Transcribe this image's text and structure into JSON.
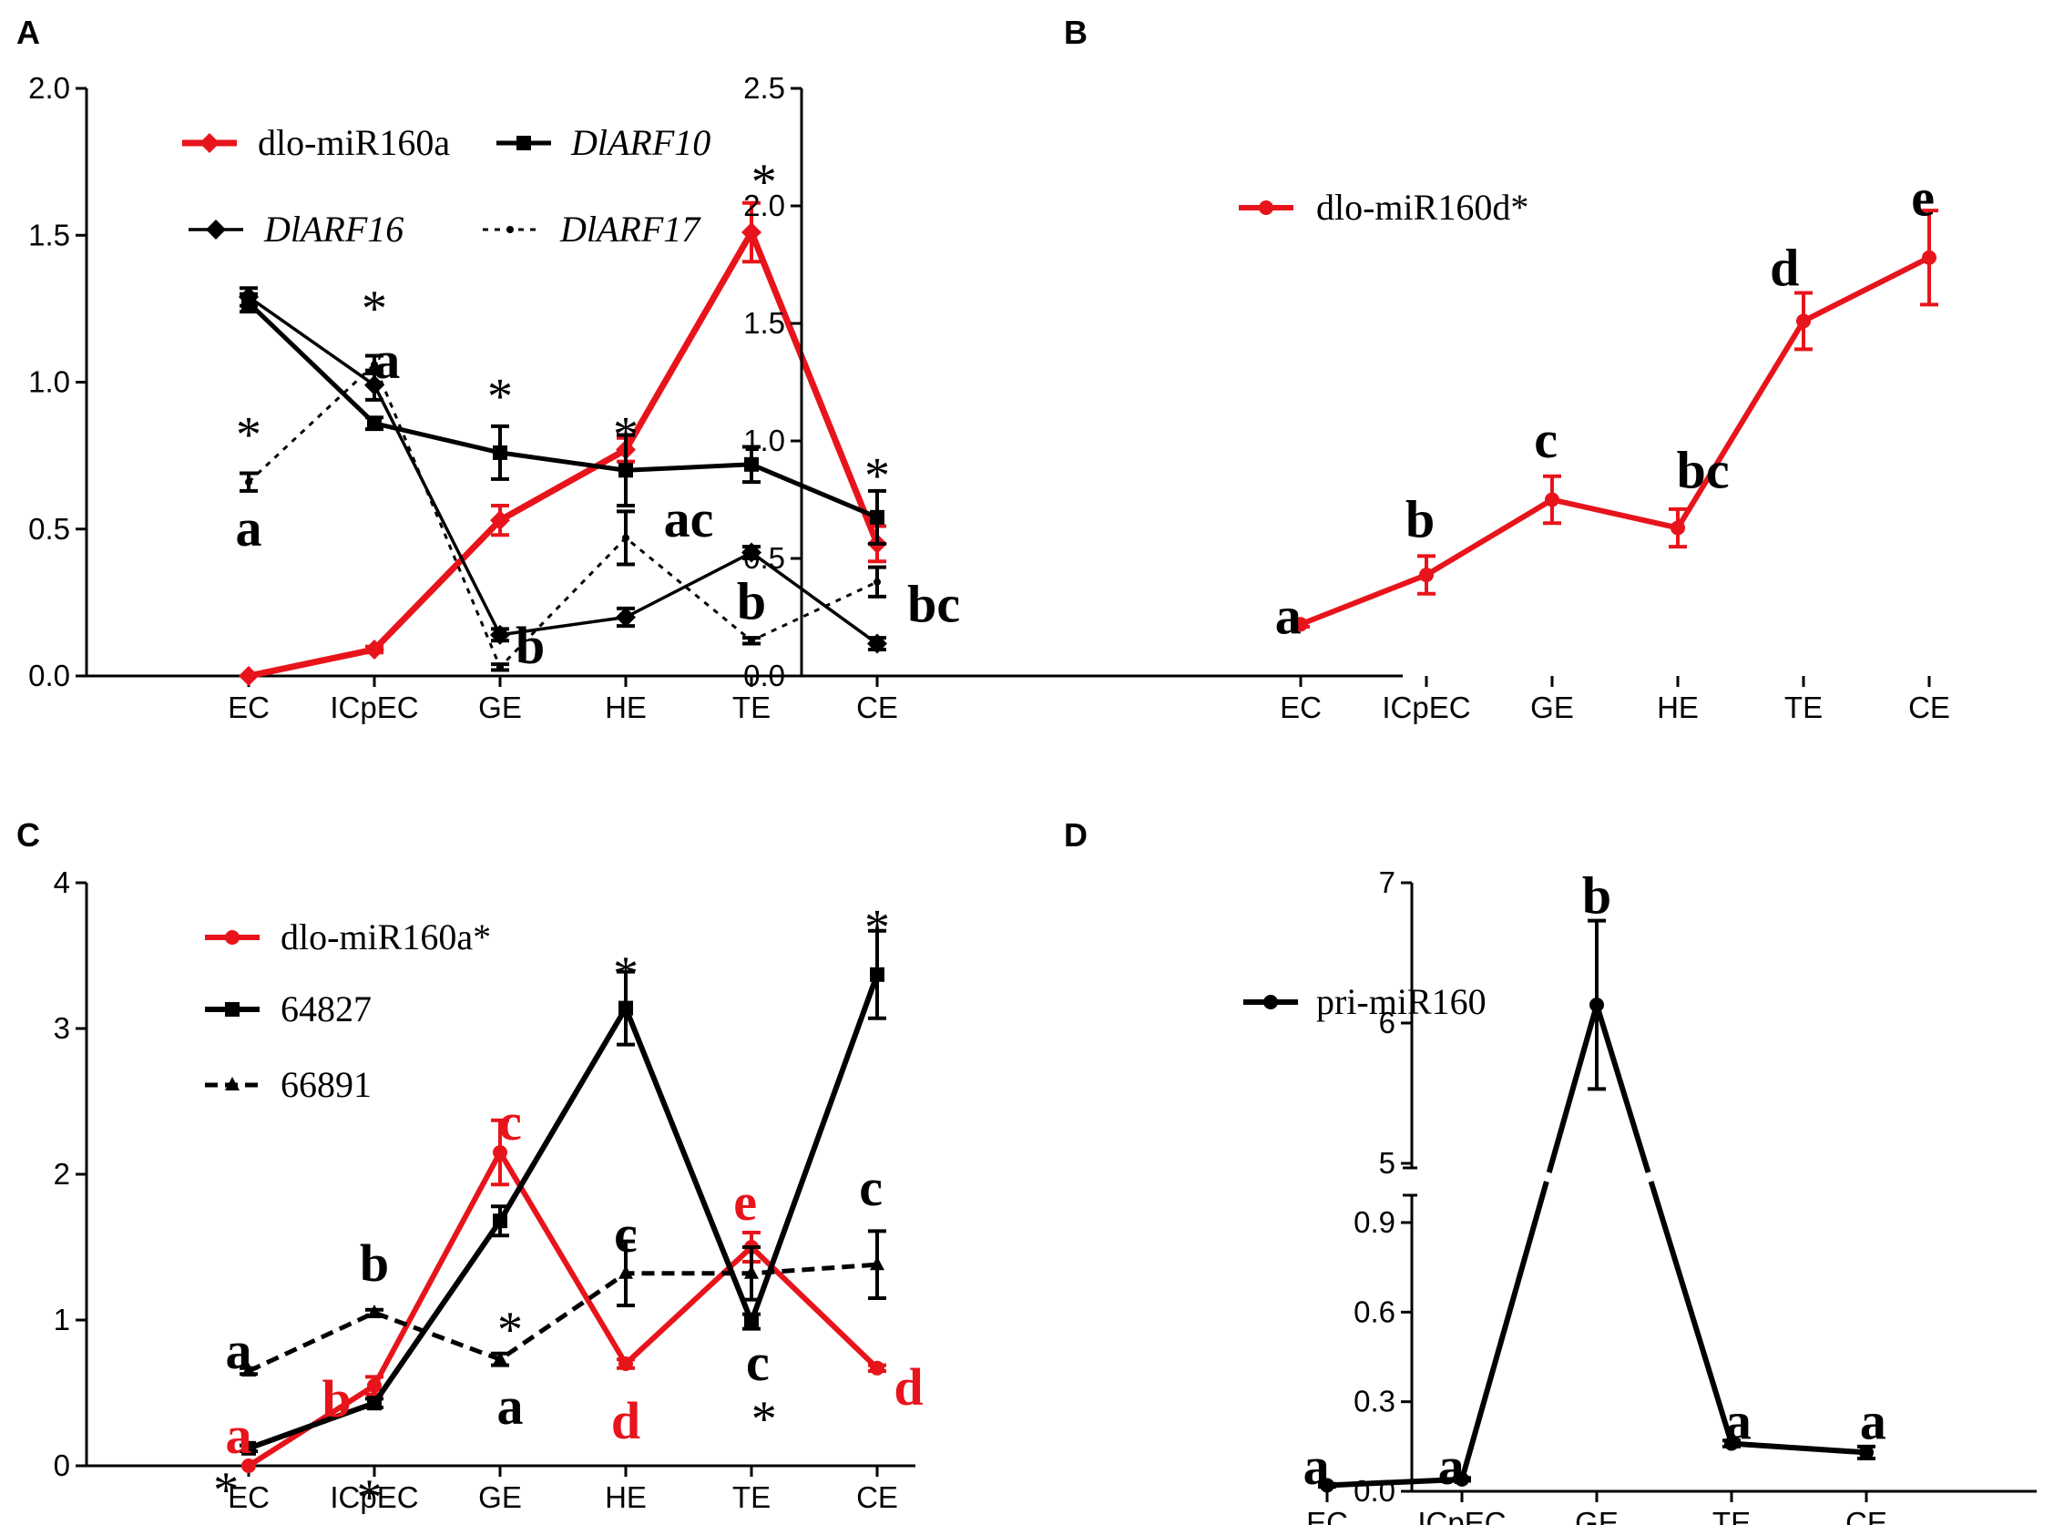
{
  "colors": {
    "red": "#e8141b",
    "black": "#000000"
  },
  "chart_data": [
    {
      "id": "A",
      "panel_label": "A",
      "type": "line",
      "categories": [
        "EC",
        "ICpEC",
        "GE",
        "HE",
        "TE",
        "CE"
      ],
      "ylim": [
        0,
        2.0
      ],
      "yticks": [
        "0.0",
        "0.5",
        "1.0",
        "1.5",
        "2.0"
      ],
      "series": [
        {
          "name": "dlo-miR160a",
          "color": "#e8141b",
          "style": "solid",
          "stroke": 7,
          "marker": "diamond",
          "values": [
            0.0,
            0.09,
            0.53,
            0.77,
            1.51,
            0.45
          ],
          "errors": [
            0.0,
            0.01,
            0.05,
            0.04,
            0.1,
            0.06
          ]
        },
        {
          "name": "DlARF10",
          "color": "#000000",
          "style": "solid",
          "stroke": 5,
          "marker": "square",
          "values": [
            1.27,
            0.86,
            0.76,
            0.7,
            0.72,
            0.54
          ],
          "errors": [
            0.03,
            0.02,
            0.09,
            0.12,
            0.06,
            0.09
          ]
        },
        {
          "name": "DlARF16",
          "color": "#000000",
          "style": "solid",
          "stroke": 3.5,
          "marker": "diamond",
          "values": [
            1.29,
            0.99,
            0.14,
            0.2,
            0.42,
            0.11
          ],
          "errors": [
            0.03,
            0.05,
            0.02,
            0.03,
            0.02,
            0.02
          ]
        },
        {
          "name": "DlARF17",
          "color": "#000000",
          "style": "dotted",
          "stroke": 3,
          "marker": "small",
          "values": [
            0.66,
            1.06,
            0.03,
            0.47,
            0.12,
            0.32
          ],
          "errors": [
            0.03,
            0.03,
            0.01,
            0.09,
            0.01,
            0.05
          ]
        }
      ],
      "legend": [
        {
          "label": "dlo-miR160a",
          "italic": false
        },
        {
          "label": "DlARF10",
          "italic": true
        },
        {
          "label": "DlARF16",
          "italic": true
        },
        {
          "label": "DlARF17",
          "italic": true
        }
      ],
      "annotations": [
        {
          "text": "*",
          "x": 0,
          "y": 0.87,
          "color": "#000000",
          "kind": "star"
        },
        {
          "text": "a",
          "x": 0,
          "y": 0.5,
          "color": "#000000"
        },
        {
          "text": "*",
          "x": 1,
          "y": 1.3,
          "color": "#000000",
          "kind": "star"
        },
        {
          "text": "a",
          "x": 1.1,
          "y": 1.07,
          "color": "#000000"
        },
        {
          "text": "*",
          "x": 2,
          "y": 1.0,
          "color": "#000000",
          "kind": "star"
        },
        {
          "text": "b",
          "x": 2.24,
          "y": 0.1,
          "color": "#000000"
        },
        {
          "text": "*",
          "x": 3,
          "y": 0.87,
          "color": "#000000",
          "kind": "star"
        },
        {
          "text": "ac",
          "x": 3.5,
          "y": 0.53,
          "color": "#000000"
        },
        {
          "text": "*",
          "x": 4.1,
          "y": 1.73,
          "color": "#000000",
          "kind": "star"
        },
        {
          "text": "b",
          "x": 4.0,
          "y": 0.25,
          "color": "#000000"
        },
        {
          "text": "*",
          "x": 5.0,
          "y": 0.73,
          "color": "#000000",
          "kind": "star"
        },
        {
          "text": "bc",
          "x": 5.45,
          "y": 0.24,
          "color": "#000000"
        }
      ]
    },
    {
      "id": "B",
      "panel_label": "B",
      "type": "line",
      "categories": [
        "EC",
        "ICpEC",
        "GE",
        "HE",
        "TE",
        "CE"
      ],
      "ylim": [
        0,
        2.5
      ],
      "yticks": [
        "0.0",
        "0.5",
        "1.0",
        "1.5",
        "2.0",
        "2.5"
      ],
      "series": [
        {
          "name": "dlo-miR160d*",
          "color": "#e8141b",
          "style": "solid",
          "stroke": 6,
          "marker": "circle",
          "values": [
            0.22,
            0.43,
            0.75,
            0.63,
            1.51,
            1.78
          ],
          "errors": [
            0.01,
            0.08,
            0.1,
            0.08,
            0.12,
            0.2
          ]
        }
      ],
      "legend": [
        {
          "label": "dlo-miR160d*",
          "italic": false
        }
      ],
      "annotations": [
        {
          "text": "a",
          "x": -0.1,
          "y": 0.25,
          "color": "#000000"
        },
        {
          "text": "b",
          "x": 0.95,
          "y": 0.66,
          "color": "#000000"
        },
        {
          "text": "c",
          "x": 1.95,
          "y": 1.0,
          "color": "#000000"
        },
        {
          "text": "bc",
          "x": 3.2,
          "y": 0.87,
          "color": "#000000"
        },
        {
          "text": "d",
          "x": 3.85,
          "y": 1.73,
          "color": "#000000"
        },
        {
          "text": "e",
          "x": 4.95,
          "y": 2.03,
          "color": "#000000"
        }
      ]
    },
    {
      "id": "C",
      "panel_label": "C",
      "type": "line",
      "categories": [
        "EC",
        "ICpEC",
        "GE",
        "HE",
        "TE",
        "CE"
      ],
      "ylim": [
        0,
        4
      ],
      "yticks": [
        "0",
        "1",
        "2",
        "3",
        "4"
      ],
      "series": [
        {
          "name": "dlo-miR160a*",
          "color": "#e8141b",
          "style": "solid",
          "stroke": 6,
          "marker": "circle",
          "values": [
            0.0,
            0.55,
            2.15,
            0.7,
            1.5,
            0.67
          ],
          "errors": [
            0.0,
            0.06,
            0.22,
            0.03,
            0.1,
            0.02
          ]
        },
        {
          "name": "64827",
          "color": "#000000",
          "style": "solid",
          "stroke": 6,
          "marker": "square",
          "values": [
            0.12,
            0.43,
            1.68,
            3.14,
            0.99,
            3.37
          ],
          "errors": [
            0.02,
            0.03,
            0.1,
            0.25,
            0.05,
            0.3
          ]
        },
        {
          "name": "66891",
          "color": "#000000",
          "style": "dashed",
          "stroke": 5,
          "marker": "triangle",
          "values": [
            0.65,
            1.05,
            0.73,
            1.32,
            1.32,
            1.38
          ],
          "errors": [
            0.02,
            0.02,
            0.04,
            0.22,
            0.18,
            0.23
          ]
        }
      ],
      "legend": [
        {
          "label": "dlo-miR160a*",
          "italic": false
        },
        {
          "label": "64827",
          "italic": false
        },
        {
          "label": "66891",
          "italic": false
        }
      ],
      "annotations": [
        {
          "text": "a",
          "x": -0.08,
          "y": 0.78,
          "color": "#000000"
        },
        {
          "text": "a",
          "x": -0.08,
          "y": 0.2,
          "color": "#e8141b"
        },
        {
          "text": "*",
          "x": -0.18,
          "y": -0.07,
          "color": "#000000",
          "kind": "star"
        },
        {
          "text": "b",
          "x": 1.0,
          "y": 1.38,
          "color": "#000000"
        },
        {
          "text": "b",
          "x": 0.7,
          "y": 0.45,
          "color": "#e8141b"
        },
        {
          "text": "*",
          "x": 0.96,
          "y": -0.12,
          "color": "#000000",
          "kind": "star"
        },
        {
          "text": "c",
          "x": 2.08,
          "y": 2.35,
          "color": "#e8141b"
        },
        {
          "text": "*",
          "x": 2.08,
          "y": 1.03,
          "color": "#000000",
          "kind": "star"
        },
        {
          "text": "a",
          "x": 2.08,
          "y": 0.4,
          "color": "#000000"
        },
        {
          "text": "*",
          "x": 3.0,
          "y": 3.47,
          "color": "#000000",
          "kind": "star"
        },
        {
          "text": "c",
          "x": 3.0,
          "y": 1.58,
          "color": "#000000"
        },
        {
          "text": "d",
          "x": 3.0,
          "y": 0.3,
          "color": "#e8141b"
        },
        {
          "text": "e",
          "x": 3.95,
          "y": 1.8,
          "color": "#e8141b"
        },
        {
          "text": "c",
          "x": 4.05,
          "y": 0.7,
          "color": "#000000"
        },
        {
          "text": "*",
          "x": 4.1,
          "y": 0.42,
          "color": "#000000",
          "kind": "star"
        },
        {
          "text": "*",
          "x": 5.0,
          "y": 3.79,
          "color": "#000000",
          "kind": "star"
        },
        {
          "text": "c",
          "x": 4.95,
          "y": 1.9,
          "color": "#000000"
        },
        {
          "text": "d",
          "x": 5.25,
          "y": 0.53,
          "color": "#e8141b"
        }
      ]
    },
    {
      "id": "D",
      "panel_label": "D",
      "type": "line",
      "categories": [
        "EC",
        "ICpEC",
        "GE",
        "TE",
        "CE"
      ],
      "broken_axis": {
        "lower_range": [
          0,
          0.9
        ],
        "upper_range": [
          5,
          7
        ]
      },
      "yticks_lower": [
        "0.0",
        "0.3",
        "0.6",
        "0.9"
      ],
      "yticks_upper": [
        "5",
        "6",
        "7"
      ],
      "series": [
        {
          "name": "pri-miR160",
          "color": "#000000",
          "style": "solid",
          "stroke": 6,
          "marker": "circle",
          "values": [
            0.02,
            0.04,
            6.13,
            0.16,
            0.13
          ],
          "errors": [
            0.005,
            0.005,
            0.6,
            0.01,
            0.02
          ]
        }
      ],
      "legend": [
        {
          "label": "pri-miR160",
          "italic": false
        }
      ],
      "annotations": [
        {
          "text": "a",
          "x": -0.08,
          "y": 0.08,
          "color": "#000000"
        },
        {
          "text": "a",
          "x": 0.92,
          "y": 0.08,
          "color": "#000000"
        },
        {
          "text": "b",
          "x": 2.0,
          "y": 6.9,
          "color": "#000000"
        },
        {
          "text": "a",
          "x": 3.05,
          "y": 0.23,
          "color": "#000000"
        },
        {
          "text": "a",
          "x": 4.05,
          "y": 0.23,
          "color": "#000000"
        }
      ]
    }
  ]
}
